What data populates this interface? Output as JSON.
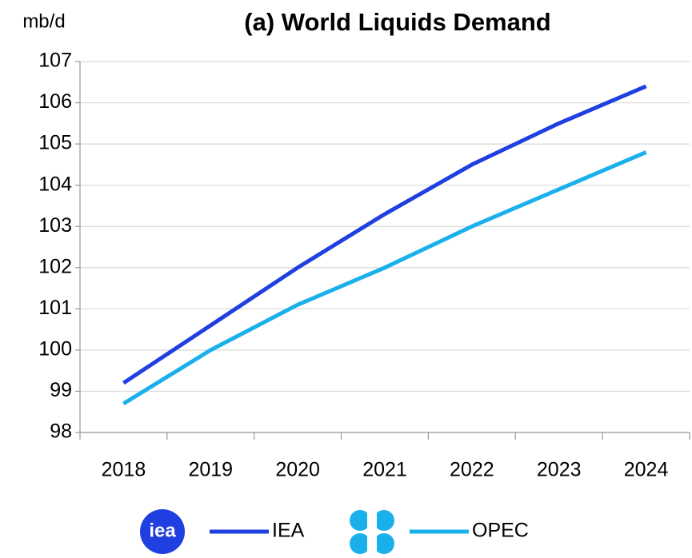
{
  "chart_data": {
    "type": "line",
    "title": "(a) World Liquids Demand",
    "y_label": "mb/d",
    "categories": [
      "2018",
      "2019",
      "2020",
      "2021",
      "2022",
      "2023",
      "2024"
    ],
    "series": [
      {
        "name": "IEA",
        "logo": "iea",
        "color": "#1f3fe0",
        "values": [
          99.2,
          100.6,
          102.0,
          103.3,
          104.5,
          105.5,
          106.4
        ]
      },
      {
        "name": "OPEC",
        "color": "#1ab0ec",
        "values": [
          98.7,
          100.0,
          101.1,
          102.0,
          103.0,
          103.9,
          104.8
        ]
      }
    ],
    "ylim": [
      98,
      107
    ],
    "yticks": [
      98,
      99,
      100,
      101,
      102,
      103,
      104,
      105,
      106,
      107
    ],
    "grid": true,
    "legend": "bottom"
  }
}
